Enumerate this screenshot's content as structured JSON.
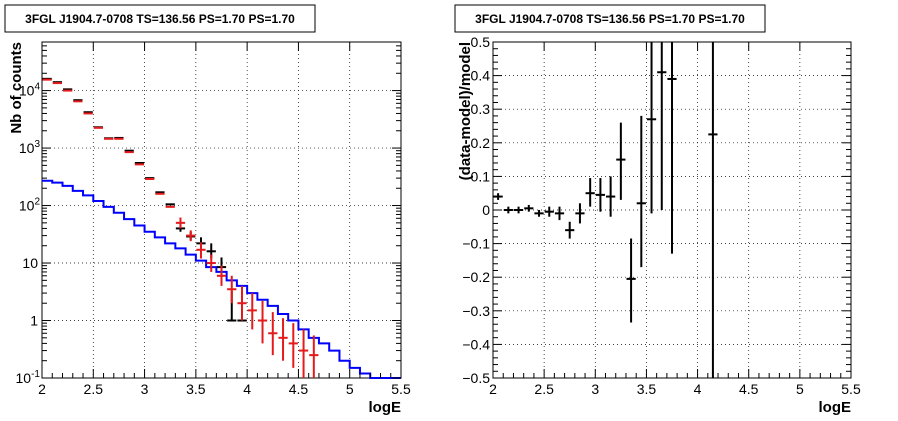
{
  "chart_data": [
    {
      "type": "line",
      "title": "3FGL J1904.7-0708 TS=136.56 PS=1.70 PS=1.70",
      "xlabel": "logE",
      "ylabel": "Nb of counts",
      "xlim": [
        2,
        5.5
      ],
      "ylim": [
        0.1,
        70000
      ],
      "yscale": "log",
      "grid": true,
      "x_ticks": [
        "2",
        "2.5",
        "3",
        "3.5",
        "4",
        "4.5",
        "5",
        "5.5"
      ],
      "y_ticks": [
        {
          "v": 0.1,
          "base": "10",
          "exp": "-1"
        },
        {
          "v": 1,
          "label": "1"
        },
        {
          "v": 10,
          "label": "10"
        },
        {
          "v": 100,
          "base": "10",
          "exp": "2"
        },
        {
          "v": 1000,
          "base": "10",
          "exp": "3"
        },
        {
          "v": 10000,
          "base": "10",
          "exp": "4"
        }
      ],
      "colors": {
        "data": "#000000",
        "model": "#e41a1c",
        "component": "#0000ff"
      },
      "bin_edges": [
        2.0,
        2.1,
        2.2,
        2.3,
        2.4,
        2.5,
        2.6,
        2.7,
        2.8,
        2.9,
        3.0,
        3.1,
        3.2,
        3.3,
        3.4,
        3.5,
        3.6,
        3.7,
        3.8,
        3.9,
        4.0,
        4.1,
        4.2,
        4.3,
        4.4,
        4.5,
        4.6,
        4.7,
        4.8,
        4.9,
        5.0,
        5.1,
        5.2,
        5.3,
        5.4,
        5.5
      ],
      "series": [
        {
          "role": "component_histogram",
          "values": [
            270,
            250,
            220,
            180,
            150,
            120,
            95,
            75,
            58,
            45,
            35,
            28,
            22,
            18,
            14,
            11,
            8.5,
            7,
            5,
            4,
            3,
            2.3,
            1.8,
            1.3,
            1.0,
            0.7,
            0.5,
            0.4,
            0.3,
            0.2,
            0.15,
            0.12,
            0.1,
            0.1,
            0.1
          ]
        },
        {
          "role": "data_points",
          "x": [
            2.05,
            2.15,
            2.25,
            2.35,
            2.45,
            2.55,
            2.65,
            2.75,
            2.85,
            2.95,
            3.05,
            3.15,
            3.25,
            3.35,
            3.45,
            3.55,
            3.65,
            3.75,
            3.85,
            3.95
          ],
          "y": [
            16000,
            14000,
            10500,
            6800,
            4200,
            2300,
            1480,
            1500,
            900,
            550,
            300,
            170,
            105,
            40,
            29,
            22,
            16,
            8.5,
            1,
            1
          ],
          "err_lo": [
            0,
            0,
            0,
            0,
            0,
            0,
            0,
            0,
            0,
            0,
            0,
            0,
            0,
            5,
            4,
            4,
            4,
            3,
            0,
            0
          ],
          "err_hi": [
            0,
            0,
            0,
            0,
            0,
            0,
            0,
            0,
            0,
            0,
            0,
            0,
            0,
            7,
            6,
            6,
            6,
            4,
            2.3,
            2.3
          ]
        },
        {
          "role": "model_points",
          "x": [
            2.05,
            2.15,
            2.25,
            2.35,
            2.45,
            2.55,
            2.65,
            2.75,
            2.85,
            2.95,
            3.05,
            3.15,
            3.25,
            3.35,
            3.45,
            3.55,
            3.65,
            3.75,
            3.85,
            3.95,
            4.05,
            4.15,
            4.25,
            4.35,
            4.45,
            4.55,
            4.65
          ],
          "y": [
            15500,
            13500,
            10000,
            6500,
            4000,
            2250,
            1450,
            1450,
            850,
            520,
            290,
            160,
            95,
            50,
            30,
            17,
            10,
            6,
            3.5,
            2,
            1.5,
            1,
            0.6,
            0.5,
            0.4,
            0.3,
            0.25
          ],
          "err_lo": [
            0,
            0,
            0,
            0,
            0,
            0,
            0,
            0,
            0,
            0,
            0,
            0,
            0,
            10,
            6,
            5,
            3,
            2,
            1.5,
            1.0,
            0.8,
            0.6,
            0.35,
            0.3,
            0.25,
            0.2,
            0.15
          ],
          "err_hi": [
            0,
            0,
            0,
            0,
            0,
            0,
            0,
            0,
            0,
            0,
            0,
            0,
            0,
            12,
            7,
            6,
            4,
            3,
            2.5,
            2.0,
            1.5,
            1.2,
            0.8,
            0.6,
            0.5,
            0.4,
            0.3
          ]
        }
      ]
    },
    {
      "type": "scatter",
      "title": "3FGL J1904.7-0708 TS=136.56 PS=1.70 PS=1.70",
      "xlabel": "logE",
      "ylabel": "(data-model)/model",
      "xlim": [
        2,
        5.5
      ],
      "ylim": [
        -0.5,
        0.5
      ],
      "grid": true,
      "x_ticks": [
        "2",
        "2.5",
        "3",
        "3.5",
        "4",
        "4.5",
        "5",
        "5.5"
      ],
      "y_ticks": [
        "-0.5",
        "-0.4",
        "-0.3",
        "-0.2",
        "-0.1",
        "0",
        "0.1",
        "0.2",
        "0.3",
        "0.4",
        "0.5"
      ],
      "color": "#000000",
      "series": [
        {
          "role": "residuals",
          "x": [
            2.05,
            2.15,
            2.25,
            2.35,
            2.45,
            2.55,
            2.65,
            2.75,
            2.85,
            2.95,
            3.05,
            3.15,
            3.25,
            3.35,
            3.45,
            3.55,
            3.65,
            3.75,
            4.15
          ],
          "y": [
            0.04,
            0.0,
            0.0,
            0.005,
            -0.01,
            -0.005,
            -0.01,
            -0.06,
            -0.01,
            0.05,
            0.045,
            0.04,
            0.15,
            -0.205,
            0.02,
            0.27,
            0.41,
            0.39,
            0.225
          ],
          "err_lo": [
            0.01,
            0.01,
            0.01,
            0.01,
            0.01,
            0.015,
            0.02,
            0.025,
            0.03,
            0.04,
            0.05,
            0.06,
            0.12,
            0.13,
            0.19,
            0.28,
            0.41,
            0.52,
            0.73
          ],
          "err_hi": [
            0.01,
            0.01,
            0.01,
            0.01,
            0.01,
            0.015,
            0.02,
            0.025,
            0.03,
            0.045,
            0.05,
            0.06,
            0.11,
            0.12,
            0.26,
            0.23,
            0.09,
            0.11,
            0.275
          ]
        }
      ]
    }
  ]
}
